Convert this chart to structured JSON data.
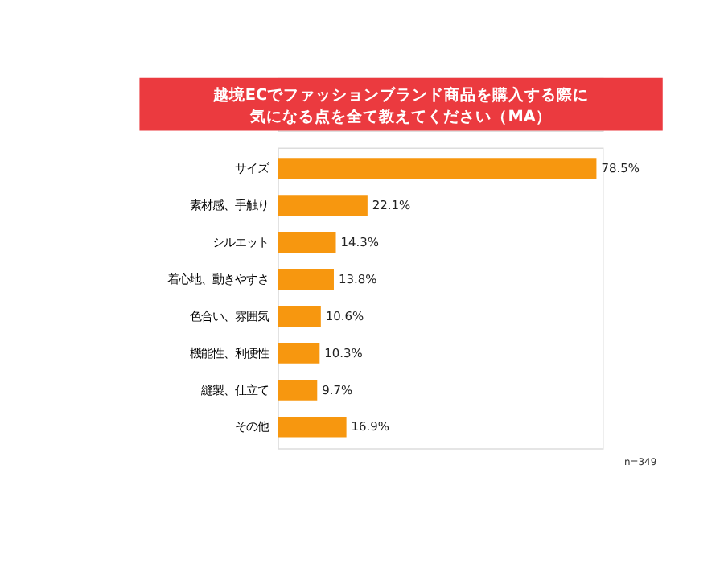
{
  "chart_data": {
    "type": "bar",
    "orientation": "horizontal",
    "title": "越境ECでファッションブランド商品を購入する際に",
    "subtitle": "気になる点を全て教えてください（MA）",
    "categories": [
      "サイズ",
      "素材感、手触り",
      "シルエット",
      "着心地、動きやすさ",
      "色合い、雰囲気",
      "機能性、利便性",
      "縫製、仕立て",
      "その他"
    ],
    "values": [
      78.5,
      22.1,
      14.3,
      13.8,
      10.6,
      10.3,
      9.7,
      16.9
    ],
    "value_labels": [
      "78.5%",
      "22.1%",
      "14.3%",
      "13.8%",
      "10.6%",
      "10.3%",
      "9.7%",
      "16.9%"
    ],
    "color": "#f7970f",
    "tick_labels": "y",
    "grid": false,
    "annotations": [
      "n=349"
    ]
  }
}
